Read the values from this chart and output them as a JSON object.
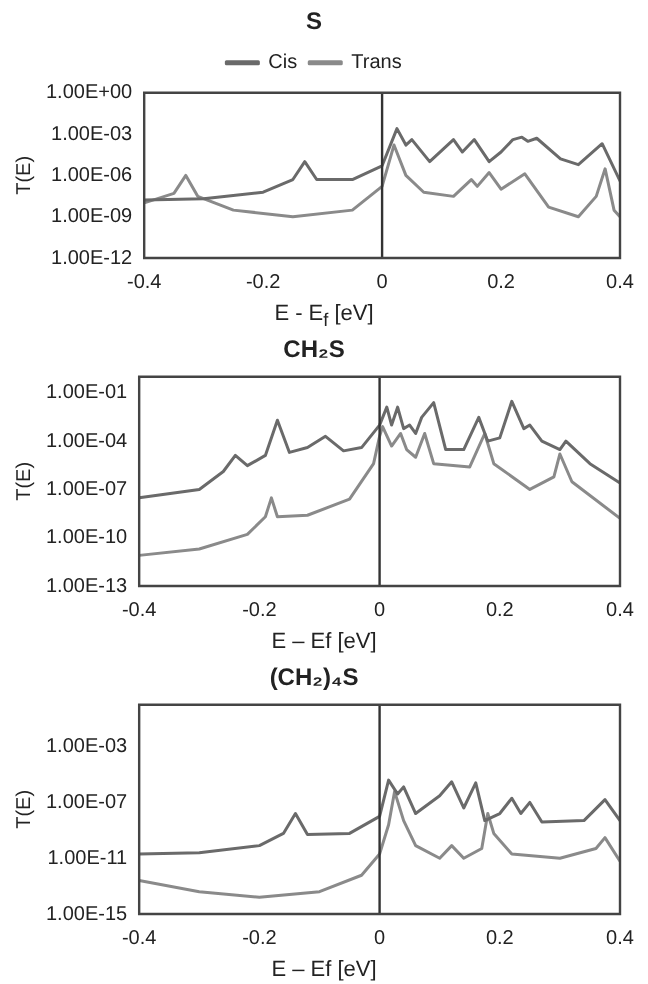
{
  "chart_data": [
    {
      "type": "line",
      "title": "S",
      "xlabel": "E - E$_{f}$ [eV]",
      "ylabel": "T(E)",
      "log": "y",
      "legend": "top",
      "grid": false,
      "marker": "none",
      "line_style": "solid",
      "xlim": [
        -0.4,
        0.4
      ],
      "xticks": [
        -0.4,
        -0.2,
        0,
        0.2,
        0.4
      ],
      "ylim": [
        1e-12,
        1
      ],
      "yticks": [
        {
          "value": 1,
          "label": "1.00E+00"
        },
        {
          "value": 0.001,
          "label": "1.00E-03"
        },
        {
          "value": 1e-06,
          "label": "1.00E-06"
        },
        {
          "value": 1e-09,
          "label": "1.00E-09"
        },
        {
          "value": 1e-12,
          "label": "1.00E-12"
        }
      ],
      "ref_lines": [
        {
          "axis": "x",
          "value": 0,
          "color": "#333333"
        }
      ],
      "series": [
        {
          "name": "Cis",
          "color": "#6a6a6a",
          "x": [
            -0.4,
            -0.3,
            -0.2,
            -0.15,
            -0.13,
            -0.11,
            -0.05,
            0,
            0.025,
            0.04,
            0.05,
            0.08,
            0.12,
            0.135,
            0.155,
            0.18,
            0.2,
            0.22,
            0.235,
            0.245,
            0.26,
            0.3,
            0.33,
            0.37,
            0.4
          ],
          "values": [
            1.6e-08,
            2e-08,
            6e-08,
            5e-07,
            1e-05,
            5e-07,
            5e-07,
            5e-06,
            0.0025,
            0.00016,
            0.0004,
            1e-05,
            0.0004,
            5e-05,
            0.0004,
            1e-05,
            5e-05,
            0.0004,
            0.0006,
            0.0003,
            0.0005,
            1.6e-05,
            6e-06,
            0.0002,
            4e-07
          ]
        },
        {
          "name": "Trans",
          "color": "#8a8a8a",
          "x": [
            -0.4,
            -0.35,
            -0.33,
            -0.31,
            -0.25,
            -0.15,
            -0.05,
            0,
            0.02,
            0.04,
            0.07,
            0.12,
            0.15,
            0.16,
            0.18,
            0.2,
            0.24,
            0.28,
            0.33,
            0.36,
            0.375,
            0.39,
            0.4
          ],
          "values": [
            1e-08,
            5e-08,
            1e-06,
            3e-08,
            3e-09,
            1e-09,
            3e-09,
            1.6e-07,
            0.00016,
            1e-06,
            6e-08,
            3e-08,
            5e-07,
            1.6e-07,
            1.6e-06,
            1e-07,
            1.3e-06,
            5e-09,
            1e-09,
            3e-08,
            3e-06,
            3e-09,
            1e-09
          ]
        }
      ]
    },
    {
      "type": "line",
      "title": "CH₂S",
      "xlabel": "E – Ef [eV]",
      "ylabel": "T(E)",
      "log": "y",
      "grid": false,
      "marker": "none",
      "line_style": "solid",
      "xlim": [
        -0.4,
        0.4
      ],
      "xticks": [
        -0.4,
        -0.2,
        0,
        0.2,
        0.4
      ],
      "ylim": [
        1e-13,
        1
      ],
      "yticks": [
        {
          "value": 0.1,
          "label": "1.00E-01"
        },
        {
          "value": 0.0001,
          "label": "1.00E-04"
        },
        {
          "value": 1e-07,
          "label": "1.00E-07"
        },
        {
          "value": 1e-10,
          "label": "1.00E-10"
        },
        {
          "value": 1e-13,
          "label": "1.00E-13"
        }
      ],
      "ref_lines": [
        {
          "axis": "x",
          "value": 0,
          "color": "#333333"
        }
      ],
      "series": [
        {
          "color": "#6a6a6a",
          "x": [
            -0.4,
            -0.3,
            -0.26,
            -0.24,
            -0.22,
            -0.19,
            -0.17,
            -0.15,
            -0.12,
            -0.09,
            -0.06,
            -0.03,
            0,
            0.012,
            0.02,
            0.03,
            0.04,
            0.05,
            0.06,
            0.07,
            0.09,
            0.11,
            0.14,
            0.165,
            0.18,
            0.2,
            0.22,
            0.24,
            0.25,
            0.27,
            0.3,
            0.31,
            0.35,
            0.4
          ],
          "values": [
            3e-08,
            1e-07,
            1.3e-06,
            1.3e-05,
            3e-06,
            1.3e-05,
            0.002,
            2e-05,
            4e-05,
            0.0002,
            2.5e-05,
            4e-05,
            0.001,
            0.013,
            0.001,
            0.013,
            0.0006,
            0.001,
            0.0003,
            0.003,
            0.025,
            3e-05,
            3e-05,
            0.003,
            0.0001,
            0.00016,
            0.03,
            0.0006,
            0.001,
            0.0001,
            3e-05,
            0.0001,
            4e-06,
            2.5e-07
          ]
        },
        {
          "color": "#8a8a8a",
          "x": [
            -0.4,
            -0.3,
            -0.22,
            -0.19,
            -0.18,
            -0.17,
            -0.12,
            -0.05,
            -0.01,
            0,
            0.005,
            0.02,
            0.035,
            0.045,
            0.06,
            0.075,
            0.09,
            0.15,
            0.175,
            0.19,
            0.25,
            0.29,
            0.3,
            0.32,
            0.4
          ],
          "values": [
            8e-12,
            2e-11,
            1.6e-10,
            2e-09,
            3e-08,
            2e-09,
            2.5e-09,
            2.5e-08,
            4e-06,
            0.0002,
            0.0008,
            5e-05,
            0.0003,
            3e-05,
            1e-05,
            0.0003,
            4e-06,
            2.5e-06,
            0.0003,
            4e-06,
            1e-07,
            6e-07,
            1.6e-05,
            3e-07,
            1.6e-09
          ]
        }
      ]
    },
    {
      "type": "line",
      "title": "(CH₂)₄S",
      "xlabel": "E – Ef [eV]",
      "ylabel": "T(E)",
      "log": "y",
      "grid": false,
      "marker": "none",
      "line_style": "solid",
      "xlim": [
        -0.4,
        0.4
      ],
      "xticks": [
        -0.4,
        -0.2,
        0,
        0.2,
        0.4
      ],
      "ylim": [
        1e-15,
        1
      ],
      "yticks": [
        {
          "value": 0.001,
          "label": "1.00E-03"
        },
        {
          "value": 1e-07,
          "label": "1.00E-07"
        },
        {
          "value": 1e-11,
          "label": "1.00E-11"
        },
        {
          "value": 1e-15,
          "label": "1.00E-15"
        }
      ],
      "ref_lines": [
        {
          "axis": "x",
          "value": 0,
          "color": "#333333"
        }
      ],
      "series": [
        {
          "color": "#6a6a6a",
          "x": [
            -0.4,
            -0.3,
            -0.2,
            -0.16,
            -0.14,
            -0.12,
            -0.05,
            0,
            0.015,
            0.03,
            0.04,
            0.06,
            0.1,
            0.12,
            0.14,
            0.16,
            0.175,
            0.2,
            0.22,
            0.235,
            0.25,
            0.27,
            0.34,
            0.375,
            0.4
          ],
          "values": [
            2e-11,
            2.5e-11,
            8e-11,
            6e-10,
            1.6e-08,
            5e-10,
            6e-10,
            1e-08,
            4e-06,
            4e-07,
            1.3e-06,
            1.6e-08,
            3e-07,
            3e-06,
            4e-08,
            2.5e-06,
            5e-09,
            1.6e-08,
            2e-07,
            1.6e-08,
            1e-07,
            4e-09,
            5e-09,
            1.6e-07,
            5e-09
          ]
        },
        {
          "color": "#8a8a8a",
          "x": [
            -0.4,
            -0.3,
            -0.2,
            -0.1,
            -0.03,
            0,
            0.015,
            0.025,
            0.04,
            0.06,
            0.1,
            0.12,
            0.14,
            0.17,
            0.18,
            0.19,
            0.22,
            0.3,
            0.36,
            0.375,
            0.4
          ],
          "values": [
            2.5e-13,
            4e-14,
            1.6e-14,
            4e-14,
            6e-13,
            2e-11,
            2.5e-09,
            6e-07,
            5e-09,
            8e-11,
            1e-11,
            8e-11,
            1e-11,
            5e-11,
            1.6e-08,
            6e-10,
            2e-11,
            1e-11,
            5e-11,
            3e-10,
            6e-12
          ]
        }
      ]
    }
  ]
}
